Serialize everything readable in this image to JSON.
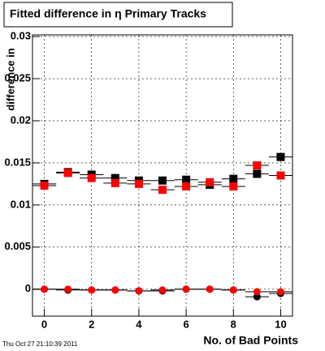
{
  "chart_data": {
    "type": "scatter",
    "title": "Fitted difference in η Primary Tracks",
    "y_label": "difference in",
    "x_label": "No. of Bad Points",
    "timestamp": "Thu Oct 27 21:10:39 2011",
    "x": [
      0,
      1,
      2,
      3,
      4,
      5,
      6,
      7,
      8,
      9,
      10
    ],
    "series": [
      {
        "color": "#000000",
        "marker": "square",
        "values": [
          0.0125,
          0.0139,
          0.0136,
          0.0132,
          0.0129,
          0.0129,
          0.013,
          0.0124,
          0.0131,
          0.0137,
          0.0157
        ]
      },
      {
        "color": "#ff0000",
        "marker": "square",
        "values": [
          0.0123,
          0.0138,
          0.0132,
          0.0126,
          0.0125,
          0.0118,
          0.0122,
          0.0127,
          0.0122,
          0.0147,
          0.0135
        ]
      },
      {
        "color": "#000000",
        "marker": "circle",
        "values": [
          0,
          -0.0001,
          -0.0001,
          -0.0001,
          -0.0002,
          -0.0002,
          0,
          0,
          -0.0001,
          -0.0009,
          -0.0005
        ]
      },
      {
        "color": "#ff0000",
        "marker": "circle",
        "values": [
          0,
          0,
          -0.0001,
          -0.0001,
          -0.0002,
          -0.0001,
          0,
          0,
          -0.0001,
          -0.0003,
          -0.0003
        ]
      }
    ],
    "xlim": [
      -0.5,
      10.5
    ],
    "ylim": [
      -0.0032,
      0.0302
    ],
    "xticks": [
      0,
      2,
      4,
      6,
      8,
      10
    ],
    "yticks": [
      0,
      0.005,
      0.01,
      0.015,
      0.02,
      0.025,
      0.03
    ],
    "grid": true
  }
}
